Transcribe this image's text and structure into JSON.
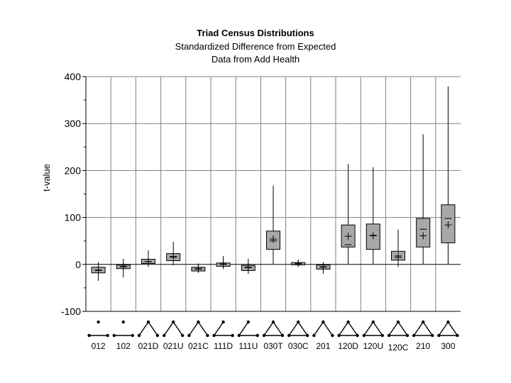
{
  "chart_data": {
    "type": "box",
    "title": "Triad Census Distributions",
    "subtitle": [
      "Standardized Difference from Expected",
      "Data from Add Health"
    ],
    "ylabel": "t-value",
    "xlabel": "",
    "ylim": [
      -100,
      400
    ],
    "yticks": [
      -100,
      0,
      100,
      200,
      300,
      400
    ],
    "grid": true,
    "categories": [
      "012",
      "102",
      "021D",
      "021U",
      "021C",
      "111D",
      "111U",
      "030T",
      "030C",
      "201",
      "120D",
      "120U",
      "120C",
      "210",
      "300"
    ],
    "boxes": [
      {
        "category": "012",
        "min": -35,
        "q1": -18,
        "median": -13,
        "mean": -12,
        "q3": -6,
        "max": 5
      },
      {
        "category": "102",
        "min": -28,
        "q1": -9,
        "median": -5,
        "mean": -4,
        "q3": -1,
        "max": 12
      },
      {
        "category": "021D",
        "min": -5,
        "q1": 2,
        "median": 6,
        "mean": 6,
        "q3": 11,
        "max": 30
      },
      {
        "category": "021U",
        "min": -2,
        "q1": 8,
        "median": 15,
        "mean": 17,
        "q3": 23,
        "max": 48
      },
      {
        "category": "021C",
        "min": -18,
        "q1": -14,
        "median": -10,
        "mean": -9,
        "q3": -6,
        "max": 2
      },
      {
        "category": "111D",
        "min": -10,
        "q1": -4,
        "median": 0,
        "mean": 1,
        "q3": 3,
        "max": 18
      },
      {
        "category": "111U",
        "min": -20,
        "q1": -13,
        "median": -7,
        "mean": -6,
        "q3": -2,
        "max": 12
      },
      {
        "category": "030T",
        "min": 0,
        "q1": 32,
        "median": 50,
        "mean": 54,
        "q3": 71,
        "max": 168
      },
      {
        "category": "030C",
        "min": -3,
        "q1": -1,
        "median": 1,
        "mean": 2,
        "q3": 4,
        "max": 10
      },
      {
        "category": "201",
        "min": -20,
        "q1": -10,
        "median": -6,
        "mean": -5,
        "q3": -1,
        "max": 5
      },
      {
        "category": "120D",
        "min": 0,
        "q1": 37,
        "median": 42,
        "mean": 60,
        "q3": 84,
        "max": 214
      },
      {
        "category": "120U",
        "min": 0,
        "q1": 32,
        "median": 62,
        "mean": 61,
        "q3": 86,
        "max": 207
      },
      {
        "category": "120C",
        "min": -5,
        "q1": 9,
        "median": 15,
        "mean": 18,
        "q3": 28,
        "max": 74
      },
      {
        "category": "210",
        "min": 0,
        "q1": 37,
        "median": 75,
        "mean": 61,
        "q3": 98,
        "max": 277
      },
      {
        "category": "300",
        "min": 0,
        "q1": 46,
        "median": 98,
        "mean": 84,
        "q3": 127,
        "max": 379
      }
    ],
    "colors": {
      "box_fill": "#a8a8a8",
      "grid": "#808080",
      "axis": "#000000"
    }
  }
}
